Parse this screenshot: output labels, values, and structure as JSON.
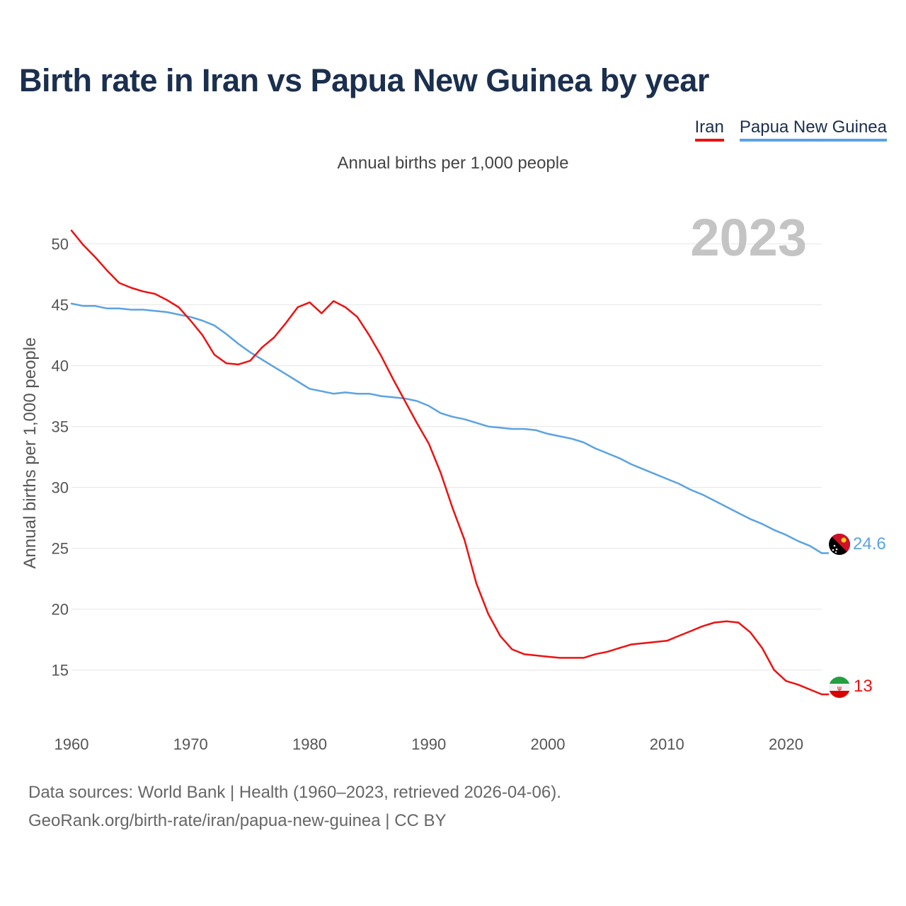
{
  "title": "Birth rate in Iran vs Papua New Guinea by year",
  "legend": {
    "iran": "Iran",
    "png": "Papua New Guinea"
  },
  "subtitle": "Annual births per 1,000 people",
  "year_watermark": "2023",
  "footer": {
    "line1": "Data sources: World Bank | Health (1960–2023, retrieved 2026-04-06).",
    "line2": "GeoRank.org/birth-rate/iran/papua-new-guinea | CC BY"
  },
  "colors": {
    "iran": "#ee1111",
    "png": "#5ba3e3",
    "grid": "#e6e6e6",
    "axis_text": "#555555",
    "watermark": "#c4c4c4"
  },
  "chart_data": {
    "type": "line",
    "title": "Birth rate in Iran vs Papua New Guinea by year",
    "ylabel": "Annual births per 1,000 people",
    "xlabel": "",
    "xlim": [
      1960,
      2023
    ],
    "ylim": [
      10.5,
      53
    ],
    "x_ticks": [
      1960,
      1970,
      1980,
      1990,
      2000,
      2010,
      2020
    ],
    "y_ticks": [
      15,
      20,
      25,
      30,
      35,
      40,
      45,
      50
    ],
    "x": [
      1960,
      1961,
      1962,
      1963,
      1964,
      1965,
      1966,
      1967,
      1968,
      1969,
      1970,
      1971,
      1972,
      1973,
      1974,
      1975,
      1976,
      1977,
      1978,
      1979,
      1980,
      1981,
      1982,
      1983,
      1984,
      1985,
      1986,
      1987,
      1988,
      1989,
      1990,
      1991,
      1992,
      1993,
      1994,
      1995,
      1996,
      1997,
      1998,
      1999,
      2000,
      2001,
      2002,
      2003,
      2004,
      2005,
      2006,
      2007,
      2008,
      2009,
      2010,
      2011,
      2012,
      2013,
      2014,
      2015,
      2016,
      2017,
      2018,
      2019,
      2020,
      2021,
      2022,
      2023
    ],
    "series": [
      {
        "name": "Iran",
        "end_label": "13",
        "values": [
          51.1,
          49.9,
          48.9,
          47.8,
          46.8,
          46.4,
          46.1,
          45.9,
          45.4,
          44.8,
          43.7,
          42.5,
          40.9,
          40.2,
          40.1,
          40.4,
          41.5,
          42.3,
          43.5,
          44.8,
          45.2,
          44.3,
          45.3,
          44.8,
          44.0,
          42.5,
          40.8,
          38.9,
          37.1,
          35.3,
          33.6,
          31.2,
          28.3,
          25.7,
          22.1,
          19.6,
          17.8,
          16.7,
          16.3,
          16.2,
          16.1,
          16.0,
          16.0,
          16.0,
          16.3,
          16.5,
          16.8,
          17.1,
          17.2,
          17.3,
          17.4,
          17.8,
          18.2,
          18.6,
          18.9,
          19.0,
          18.9,
          18.1,
          16.8,
          15.0,
          14.1,
          13.8,
          13.4,
          13.0
        ]
      },
      {
        "name": "Papua New Guinea",
        "end_label": "24.6",
        "values": [
          45.1,
          44.9,
          44.9,
          44.7,
          44.7,
          44.6,
          44.6,
          44.5,
          44.4,
          44.2,
          44.0,
          43.7,
          43.3,
          42.6,
          41.8,
          41.1,
          40.5,
          39.9,
          39.3,
          38.7,
          38.1,
          37.9,
          37.7,
          37.8,
          37.7,
          37.7,
          37.5,
          37.4,
          37.3,
          37.1,
          36.7,
          36.1,
          35.8,
          35.6,
          35.3,
          35.0,
          34.9,
          34.8,
          34.8,
          34.7,
          34.4,
          34.2,
          34.0,
          33.7,
          33.2,
          32.8,
          32.4,
          31.9,
          31.5,
          31.1,
          30.7,
          30.3,
          29.8,
          29.4,
          28.9,
          28.4,
          27.9,
          27.4,
          27.0,
          26.5,
          26.1,
          25.6,
          25.2,
          24.6
        ]
      }
    ]
  }
}
